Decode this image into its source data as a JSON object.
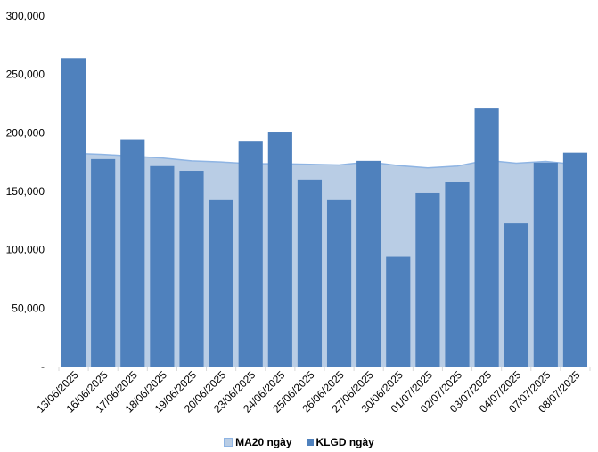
{
  "chart_data": {
    "type": "bar",
    "title": "",
    "xlabel": "",
    "ylabel": "",
    "categories": [
      "13/06/2025",
      "16/06/2025",
      "17/06/2025",
      "18/06/2025",
      "19/06/2025",
      "20/06/2025",
      "23/06/2025",
      "24/06/2025",
      "25/06/2025",
      "26/06/2025",
      "27/06/2025",
      "30/06/2025",
      "01/07/2025",
      "02/07/2025",
      "03/07/2025",
      "04/07/2025",
      "07/07/2025",
      "08/07/2025"
    ],
    "ylim": [
      0,
      300000
    ],
    "yticks": [
      0,
      50000,
      100000,
      150000,
      200000,
      250000,
      300000
    ],
    "ytick_labels": [
      "-",
      "50,000",
      "100,000",
      "150,000",
      "200,000",
      "250,000",
      "300,000"
    ],
    "grid": false,
    "legend_position": "bottom",
    "series": [
      {
        "name": "MA20 ngày",
        "type": "area",
        "color": "#B9CDE5",
        "line_color": "#8EB4E3",
        "values": [
          182500,
          181500,
          180000,
          178500,
          176000,
          175000,
          173500,
          173500,
          173000,
          172500,
          175000,
          172000,
          170000,
          171500,
          176500,
          174000,
          175500,
          173000
        ]
      },
      {
        "name": "KLGD ngày",
        "type": "bar",
        "color": "#4F81BD",
        "values": [
          264000,
          177500,
          194500,
          171500,
          167500,
          142500,
          192500,
          201000,
          160000,
          142500,
          176000,
          94000,
          148500,
          158000,
          221500,
          122500,
          174500,
          183000
        ]
      }
    ]
  }
}
